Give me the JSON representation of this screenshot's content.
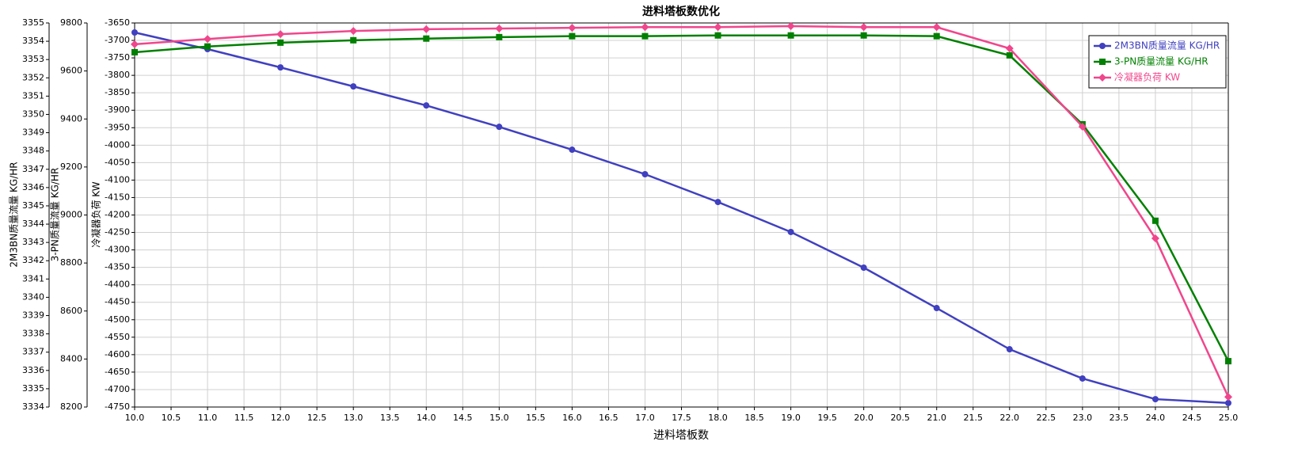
{
  "chart_data": {
    "type": "line",
    "title": "进料塔板数优化",
    "x_label": "进料塔板数",
    "y_label": "2M3BN质量流量 KG/HR",
    "y2_label": "3-PN质量流量  KG/HR",
    "y3_label": "冷凝器负荷 KW",
    "x": [
      10,
      11,
      12,
      13,
      14,
      15,
      16,
      17,
      18,
      19,
      20,
      21,
      22,
      23,
      24,
      25
    ],
    "xlim": [
      10,
      25
    ],
    "xticks": [
      {
        "value": 10,
        "label": "10.0"
      },
      10.5,
      {
        "value": 11,
        "label": "11.0"
      },
      11.5,
      {
        "value": 12,
        "label": "12.0"
      },
      12.5,
      {
        "value": 13,
        "label": "13.0"
      },
      13.5,
      {
        "value": 14,
        "label": "14.0"
      },
      14.5,
      {
        "value": 15,
        "label": "15.0"
      },
      15.5,
      {
        "value": 16,
        "label": "16.0"
      },
      16.5,
      {
        "value": 17,
        "label": "17.0"
      },
      17.5,
      {
        "value": 18,
        "label": "18.0"
      },
      18.5,
      {
        "value": 19,
        "label": "19.0"
      },
      19.5,
      {
        "value": 20,
        "label": "20.0"
      },
      20.5,
      {
        "value": 21,
        "label": "21.0"
      },
      21.5,
      {
        "value": 22,
        "label": "22.0"
      },
      22.5,
      {
        "value": 23,
        "label": "23.0"
      },
      23.5,
      {
        "value": 24,
        "label": "24.0"
      },
      24.5,
      {
        "value": 25,
        "label": "25.0"
      }
    ],
    "ylim": [
      3334,
      3355
    ],
    "yticks": [
      3334,
      3335,
      3336,
      3337,
      3338,
      3339,
      3340,
      3341,
      3342,
      3343,
      3344,
      3345,
      3346,
      3347,
      3348,
      3349,
      3350,
      3351,
      3352,
      3353,
      3354,
      3355
    ],
    "y2lim": [
      8200,
      9800
    ],
    "y2ticks": [
      8200,
      8400,
      8600,
      8800,
      9000,
      9200,
      9400,
      9600,
      9800
    ],
    "y3lim": [
      -4750,
      -3650
    ],
    "y3ticks": [
      -4750,
      -4700,
      -4650,
      -4600,
      -4550,
      -4500,
      -4450,
      -4400,
      -4350,
      -4300,
      -4250,
      -4200,
      -4150,
      -4100,
      -4050,
      -4000,
      -3950,
      -3900,
      -3850,
      -3800,
      -3750,
      -3700,
      -3650
    ],
    "grid": true,
    "legend": "upper right",
    "series": [
      {
        "name": "2M3BN质量流量 KG/HR",
        "color": "#4040c0",
        "marker": "circle",
        "axis": "y",
        "values": [
          3354.48,
          3353.57,
          3352.57,
          3351.53,
          3350.49,
          3349.32,
          3348.07,
          3346.73,
          3345.21,
          3343.57,
          3341.62,
          3339.41,
          3337.16,
          3335.56,
          3334.43,
          3334.22
        ]
      },
      {
        "name": "3-PN质量流量 KG/HR",
        "color": "#008000",
        "marker": "square",
        "axis": "y2",
        "values": [
          9678,
          9702,
          9718,
          9728,
          9735,
          9741,
          9745,
          9745,
          9748,
          9748,
          9748,
          9745,
          9665,
          9378,
          8976,
          8391
        ]
      },
      {
        "name": "冷凝器负荷 KW",
        "color": "#f0468c",
        "marker": "diamond",
        "axis": "y3",
        "values": [
          -3711,
          -3696,
          -3682,
          -3673,
          -3668,
          -3666,
          -3664,
          -3662,
          -3662,
          -3659,
          -3662,
          -3662,
          -3723,
          -3947,
          -4267,
          -4721
        ]
      }
    ]
  }
}
